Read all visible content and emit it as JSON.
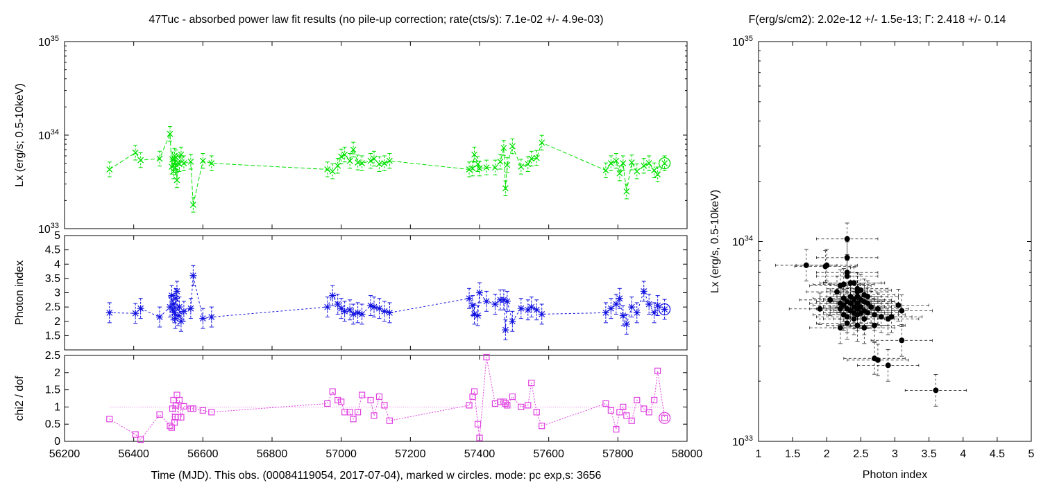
{
  "title_left": "47Tuc  - absorbed power law fit results (no pile-up correction; rate(cts/s): 7.1e-02 +/- 4.9e-03)",
  "title_right": "F(erg/s/cm2): 2.02e-12 +/- 1.5e-13; Γ: 2.418 +/- 0.14",
  "xlabel_bottom": "Time (MJD). This obs. (00084119054, 2017-07-04), marked w circles. mode: pc exp,s: 3656",
  "colors": {
    "lx": "#00e000",
    "gamma": "#1010e0",
    "chi2": "#e040e0",
    "scatter": "#000000"
  },
  "chart_data": [
    {
      "id": "lx_vs_time",
      "type": "scatter",
      "ylabel": "Lx (erg/s; 0.5-10keV)",
      "yscale": "log",
      "xlim": [
        56200,
        58000
      ],
      "ylim": [
        1e+33,
        1e+35
      ],
      "yticks": [
        {
          "base": "10",
          "exp": "33"
        },
        {
          "base": "10",
          "exp": "34"
        },
        {
          "base": "10",
          "exp": "35"
        }
      ],
      "marker": "x",
      "series": [
        {
          "x": [
            56330,
            56405,
            56420,
            56475,
            56505,
            56510,
            56512,
            56515,
            56518,
            56520,
            56522,
            56525,
            56528,
            56532,
            56537,
            56545,
            56565,
            56572,
            56600,
            56625,
            56960,
            56975,
            56990,
            57000,
            57010,
            57025,
            57035,
            57048,
            57060,
            57085,
            57095,
            57110,
            57125,
            57140,
            57370,
            57380,
            57385,
            57395,
            57400,
            57420,
            57445,
            57460,
            57470,
            57475,
            57480,
            57495,
            57520,
            57540,
            57550,
            57565,
            57580,
            57765,
            57780,
            57795,
            57805,
            57815,
            57825,
            57840,
            57855,
            57875,
            57890,
            57905,
            57915,
            57935
          ],
          "y": [
            4.3e+33,
            6.5e+33,
            5.4e+33,
            5.6e+33,
            1.03e+34,
            4.6e+33,
            5.5e+33,
            4.1e+33,
            6e+33,
            4.5e+33,
            5.8e+33,
            3.3e+33,
            5.1e+33,
            4.9e+33,
            6.2e+33,
            5e+33,
            5.2e+33,
            1.8e+33,
            5.3e+33,
            5e+33,
            4.3e+33,
            4.1e+33,
            4.7e+33,
            5.9e+33,
            6.2e+33,
            5.3e+33,
            7e+33,
            5.1e+33,
            5e+33,
            5.3e+33,
            5.6e+33,
            4.9e+33,
            5e+33,
            5.3e+33,
            4.3e+33,
            4.4e+33,
            6.2e+33,
            4.9e+33,
            4.4e+33,
            4.5e+33,
            4.5e+33,
            5.2e+33,
            7.3e+33,
            2.7e+33,
            4.8e+33,
            7.6e+33,
            4.6e+33,
            4.9e+33,
            5.6e+33,
            5.7e+33,
            8.3e+33,
            4.2e+33,
            5e+33,
            5.3e+33,
            3.9e+33,
            5e+33,
            2.5e+33,
            5.1e+33,
            4.1e+33,
            4.7e+33,
            5e+33,
            4.2e+33,
            3.8e+33,
            5e+33
          ],
          "err_frac": 0.2
        }
      ],
      "current_obs": {
        "x": 57935,
        "y": 5e+33
      }
    },
    {
      "id": "gamma_vs_time",
      "type": "scatter",
      "ylabel": "Photon index",
      "xlim": [
        56200,
        58000
      ],
      "ylim": [
        1,
        5
      ],
      "yticks": [
        "1.5",
        "2",
        "2.5",
        "3",
        "3.5",
        "4",
        "4.5",
        "5"
      ],
      "marker": "star",
      "series": [
        {
          "x": [
            56330,
            56405,
            56420,
            56475,
            56505,
            56510,
            56512,
            56515,
            56518,
            56520,
            56522,
            56525,
            56528,
            56532,
            56537,
            56545,
            56565,
            56572,
            56600,
            56625,
            56960,
            56975,
            56990,
            57000,
            57010,
            57025,
            57035,
            57048,
            57060,
            57085,
            57095,
            57110,
            57125,
            57140,
            57370,
            57380,
            57385,
            57395,
            57400,
            57420,
            57445,
            57460,
            57470,
            57475,
            57480,
            57495,
            57520,
            57540,
            57550,
            57565,
            57580,
            57765,
            57780,
            57795,
            57805,
            57815,
            57825,
            57840,
            57855,
            57875,
            57890,
            57905,
            57915,
            57935
          ],
          "y": [
            2.3,
            2.28,
            2.45,
            2.15,
            2.5,
            2.9,
            2.4,
            2.6,
            2.3,
            2.1,
            2.8,
            3.05,
            2.2,
            2.5,
            2.0,
            2.35,
            2.45,
            3.6,
            2.1,
            2.15,
            2.5,
            2.9,
            2.6,
            2.45,
            2.35,
            2.4,
            2.25,
            2.3,
            2.25,
            2.55,
            2.5,
            2.45,
            2.35,
            2.3,
            2.8,
            2.55,
            2.25,
            2.2,
            3.0,
            2.7,
            2.6,
            2.75,
            2.75,
            1.7,
            2.7,
            2.0,
            2.45,
            2.4,
            2.5,
            2.4,
            2.25,
            2.3,
            2.45,
            2.6,
            2.8,
            2.2,
            1.9,
            2.5,
            2.3,
            3.05,
            2.6,
            2.3,
            2.55,
            2.418
          ],
          "err": 0.35
        }
      ],
      "current_obs": {
        "x": 57935,
        "y": 2.418
      }
    },
    {
      "id": "chi2_vs_time",
      "type": "scatter",
      "ylabel": "chi2 / dof",
      "xlabel": "Time (MJD). This obs. (00084119054, 2017-07-04), marked w circles. mode: pc exp,s: 3656",
      "xlim": [
        56200,
        58000
      ],
      "ylim": [
        0,
        2.5
      ],
      "yticks": [
        "0",
        "0.5",
        "1",
        "1.5",
        "2",
        "2.5"
      ],
      "xticks": [
        "56200",
        "56400",
        "56600",
        "56800",
        "57000",
        "57200",
        "57400",
        "57600",
        "57800",
        "58000"
      ],
      "marker": "square",
      "reference_line": 1,
      "series": [
        {
          "x": [
            56330,
            56405,
            56420,
            56475,
            56505,
            56510,
            56512,
            56515,
            56518,
            56520,
            56522,
            56525,
            56528,
            56532,
            56537,
            56545,
            56565,
            56572,
            56600,
            56625,
            56960,
            56975,
            56990,
            57000,
            57010,
            57025,
            57035,
            57048,
            57060,
            57085,
            57095,
            57110,
            57125,
            57140,
            57370,
            57380,
            57385,
            57395,
            57400,
            57420,
            57445,
            57460,
            57470,
            57475,
            57480,
            57495,
            57520,
            57540,
            57550,
            57565,
            57580,
            57765,
            57780,
            57795,
            57805,
            57815,
            57825,
            57840,
            57855,
            57875,
            57890,
            57905,
            57915,
            57935
          ],
          "y": [
            0.65,
            0.2,
            0.05,
            0.78,
            0.45,
            0.4,
            0.95,
            1.2,
            0.55,
            0.7,
            1.05,
            1.35,
            0.7,
            1.2,
            0.7,
            1.02,
            0.95,
            0.95,
            0.9,
            0.85,
            1.1,
            1.45,
            1.2,
            1.15,
            0.85,
            0.85,
            0.65,
            0.85,
            1.35,
            1.2,
            0.75,
            1.3,
            1.05,
            0.6,
            1.05,
            1.3,
            1.45,
            0.5,
            0.1,
            2.45,
            1.1,
            1.15,
            1.15,
            1.1,
            1.05,
            1.3,
            1.0,
            1.05,
            1.7,
            0.85,
            0.45,
            1.1,
            0.9,
            0.35,
            0.85,
            1.0,
            0.75,
            0.6,
            1.2,
            0.95,
            0.85,
            1.2,
            2.05,
            0.68
          ],
          "err": 0
        }
      ],
      "current_obs": {
        "x": 57935,
        "y": 0.68
      }
    },
    {
      "id": "lx_vs_gamma",
      "type": "scatter",
      "xlabel": "Photon index",
      "ylabel": "Lx (erg/s, 0.5-10keV)",
      "yscale": "log",
      "xlim": [
        1,
        5
      ],
      "ylim": [
        1e+33,
        1e+35
      ],
      "xticks": [
        "1",
        "1.5",
        "2",
        "2.5",
        "3",
        "3.5",
        "4",
        "4.5",
        "5"
      ],
      "yticks": [
        {
          "base": "10",
          "exp": "33"
        },
        {
          "base": "10",
          "exp": "34"
        },
        {
          "base": "10",
          "exp": "35"
        }
      ],
      "marker": "dot",
      "points": [
        [
          2.3,
          10.3
        ],
        [
          2.3,
          8.3
        ],
        [
          1.7,
          7.6
        ],
        [
          1.98,
          7.5
        ],
        [
          2.0,
          7.6
        ],
        [
          2.3,
          7.0
        ],
        [
          2.3,
          6.7
        ],
        [
          2.35,
          6.2
        ],
        [
          2.2,
          6.0
        ],
        [
          2.25,
          6.1
        ],
        [
          2.4,
          6.2
        ],
        [
          2.45,
          5.8
        ],
        [
          2.5,
          5.7
        ],
        [
          2.6,
          5.3
        ],
        [
          2.15,
          5.6
        ],
        [
          2.45,
          5.6
        ],
        [
          2.55,
          5.4
        ],
        [
          2.35,
          5.3
        ],
        [
          2.45,
          5.3
        ],
        [
          2.25,
          5.2
        ],
        [
          2.05,
          5.1
        ],
        [
          2.4,
          5.1
        ],
        [
          2.5,
          5.1
        ],
        [
          2.55,
          5.0
        ],
        [
          2.3,
          5.0
        ],
        [
          2.2,
          4.9
        ],
        [
          2.35,
          4.9
        ],
        [
          2.45,
          4.9
        ],
        [
          2.6,
          4.9
        ],
        [
          2.25,
          4.8
        ],
        [
          3.05,
          4.8
        ],
        [
          2.4,
          4.7
        ],
        [
          2.5,
          4.7
        ],
        [
          2.65,
          4.7
        ],
        [
          1.9,
          4.6
        ],
        [
          2.2,
          4.6
        ],
        [
          2.3,
          4.6
        ],
        [
          2.45,
          4.6
        ],
        [
          2.75,
          4.6
        ],
        [
          2.35,
          4.5
        ],
        [
          2.55,
          4.5
        ],
        [
          3.1,
          4.5
        ],
        [
          2.4,
          4.4
        ],
        [
          2.5,
          4.4
        ],
        [
          2.6,
          4.4
        ],
        [
          2.25,
          4.3
        ],
        [
          2.45,
          4.3
        ],
        [
          2.7,
          4.3
        ],
        [
          2.8,
          4.2
        ],
        [
          2.3,
          4.2
        ],
        [
          2.95,
          4.2
        ],
        [
          2.4,
          4.1
        ],
        [
          2.55,
          4.1
        ],
        [
          2.9,
          4.1
        ],
        [
          2.3,
          3.9
        ],
        [
          2.45,
          3.8
        ],
        [
          2.7,
          3.8
        ],
        [
          2.2,
          3.7
        ],
        [
          2.55,
          3.7
        ],
        [
          3.1,
          3.2
        ],
        [
          2.7,
          2.6
        ],
        [
          2.9,
          2.4
        ],
        [
          3.6,
          1.8
        ],
        [
          2.75,
          2.55
        ]
      ],
      "y_multiplier": 1e+33,
      "x_err": 0.45,
      "y_err_frac": 0.2
    }
  ]
}
